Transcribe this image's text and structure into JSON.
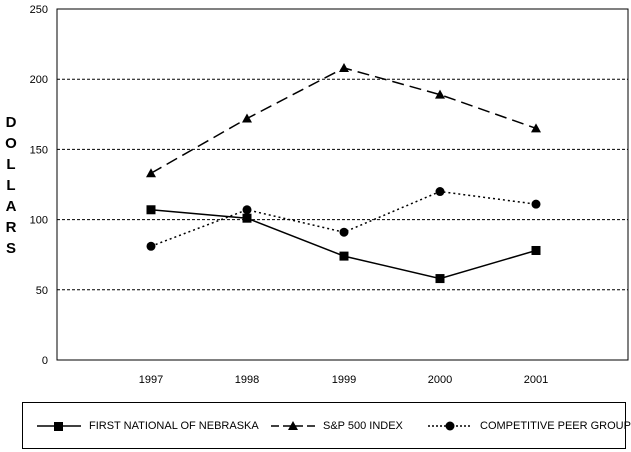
{
  "chart_data": {
    "type": "line",
    "categories": [
      "1997",
      "1998",
      "1999",
      "2000",
      "2001"
    ],
    "ylabel": "DOLLARS",
    "ylim": [
      0,
      250
    ],
    "yticks": [
      0,
      50,
      100,
      150,
      200,
      250
    ],
    "grid": "horizontal dashed",
    "legend_position": "bottom",
    "series": [
      {
        "name": "FIRST NATIONAL OF NEBRASKA",
        "values": [
          107,
          101,
          74,
          58,
          78
        ],
        "marker": "square",
        "line_style": "solid",
        "color": "#000000"
      },
      {
        "name": "S&P 500 INDEX",
        "values": [
          133,
          172,
          208,
          189,
          165
        ],
        "marker": "triangle",
        "line_style": "dashed",
        "color": "#000000"
      },
      {
        "name": "COMPETITIVE PEER GROUP",
        "values": [
          81,
          107,
          91,
          120,
          111
        ],
        "marker": "circle",
        "line_style": "dotted",
        "color": "#000000"
      }
    ]
  }
}
